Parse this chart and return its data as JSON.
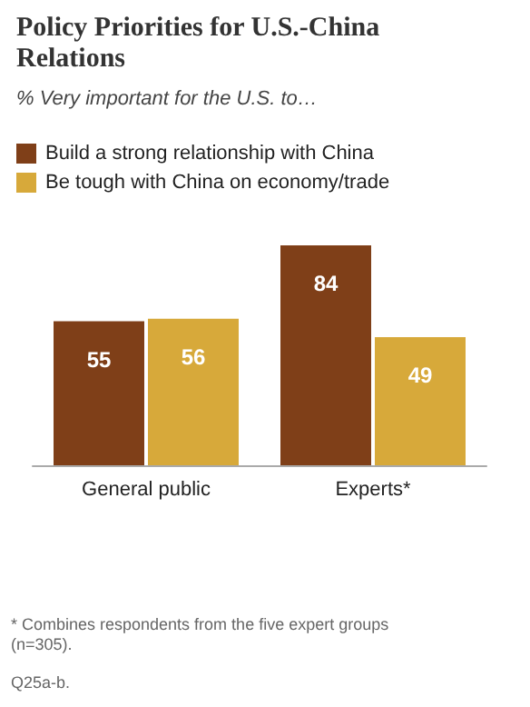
{
  "chart_data": {
    "type": "bar",
    "title": "Policy Priorities for U.S.-China Relations",
    "subtitle": "% Very important for the U.S. to…",
    "categories": [
      "General public",
      "Experts*"
    ],
    "series": [
      {
        "name": "Build a strong relationship with China",
        "color": "#7f3f18",
        "values": [
          55,
          84
        ]
      },
      {
        "name": "Be tough with China on economy/trade",
        "color": "#d7a93a",
        "values": [
          56,
          49
        ]
      }
    ],
    "data_labels": true,
    "legend": "top left",
    "annotations": [
      "* Combines respondents from the five expert groups (n=305).",
      "Q25a-b."
    ]
  }
}
